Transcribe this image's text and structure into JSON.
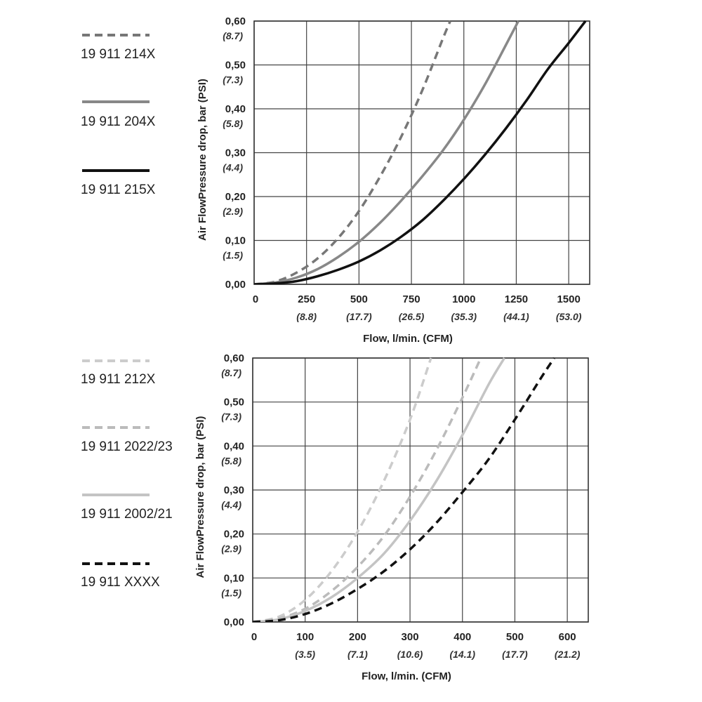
{
  "chart_data": [
    {
      "type": "line",
      "xlabel": "Flow, l/min. (CFM)",
      "ylabel": "Air FlowPressure drop, bar (PSI)",
      "xlim": [
        0,
        1600
      ],
      "ylim": [
        0,
        0.6
      ],
      "x_ticks": [
        0,
        250,
        500,
        750,
        1000,
        1250,
        1500
      ],
      "x_tick_labels": [
        "0",
        "250",
        "500",
        "750",
        "1000",
        "1250",
        "1500"
      ],
      "x_tick_alt_labels": [
        "",
        "(8.8)",
        "(17.7)",
        "(26.5)",
        "(35.3)",
        "(44.1)",
        "(53.0)"
      ],
      "y_ticks": [
        0,
        0.1,
        0.2,
        0.3,
        0.4,
        0.5,
        0.6
      ],
      "y_tick_labels": [
        "0,00",
        "0,10",
        "0,20",
        "0,30",
        "0,40",
        "0,50",
        "0,60"
      ],
      "y_tick_alt_labels": [
        "",
        "(1.5)",
        "(2.9)",
        "(4.4)",
        "(5.8)",
        "(7.3)",
        "(8.7)"
      ],
      "grid": true,
      "legend_position": "left",
      "series": [
        {
          "name": "19 911 214X",
          "color": "#777777",
          "style": "dashed",
          "x": [
            0,
            100,
            200,
            300,
            400,
            500,
            600,
            700,
            800,
            900,
            935
          ],
          "y": [
            0,
            0.006,
            0.026,
            0.058,
            0.105,
            0.167,
            0.245,
            0.335,
            0.44,
            0.56,
            0.6
          ]
        },
        {
          "name": "19 911 204X",
          "color": "#888888",
          "style": "solid",
          "x": [
            0,
            100,
            200,
            300,
            400,
            500,
            600,
            700,
            800,
            900,
            1000,
            1100,
            1200,
            1260
          ],
          "y": [
            0,
            0.004,
            0.015,
            0.034,
            0.062,
            0.097,
            0.14,
            0.19,
            0.245,
            0.305,
            0.375,
            0.455,
            0.545,
            0.6
          ]
        },
        {
          "name": "19 911 215X",
          "color": "#111111",
          "style": "solid",
          "x": [
            0,
            100,
            200,
            300,
            400,
            500,
            600,
            700,
            800,
            900,
            1000,
            1100,
            1200,
            1300,
            1400,
            1500,
            1580
          ],
          "y": [
            0,
            0.002,
            0.007,
            0.018,
            0.033,
            0.052,
            0.077,
            0.108,
            0.145,
            0.19,
            0.24,
            0.295,
            0.355,
            0.42,
            0.49,
            0.55,
            0.6
          ]
        }
      ]
    },
    {
      "type": "line",
      "xlabel": "Flow, l/min. (CFM)",
      "ylabel": "Air FlowPressure drop, bar (PSI)",
      "xlim": [
        0,
        640
      ],
      "ylim": [
        0,
        0.6
      ],
      "x_ticks": [
        0,
        100,
        200,
        300,
        400,
        500,
        600
      ],
      "x_tick_labels": [
        "0",
        "100",
        "200",
        "300",
        "400",
        "500",
        "600"
      ],
      "x_tick_alt_labels": [
        "",
        "(3.5)",
        "(7.1)",
        "(10.6)",
        "(14.1)",
        "(17.7)",
        "(21.2)"
      ],
      "y_ticks": [
        0,
        0.1,
        0.2,
        0.3,
        0.4,
        0.5,
        0.6
      ],
      "y_tick_labels": [
        "0,00",
        "0,10",
        "0,20",
        "0,30",
        "0,40",
        "0,50",
        "0,60"
      ],
      "y_tick_alt_labels": [
        "",
        "(1.5)",
        "(2.9)",
        "(4.4)",
        "(5.8)",
        "(7.3)",
        "(8.7)"
      ],
      "grid": true,
      "legend_position": "left",
      "series": [
        {
          "name": "19 911 212X",
          "color": "#cccccc",
          "style": "dashed",
          "x": [
            0,
            50,
            100,
            150,
            200,
            250,
            300,
            340
          ],
          "y": [
            0,
            0.012,
            0.05,
            0.115,
            0.205,
            0.32,
            0.46,
            0.6
          ]
        },
        {
          "name": "19 911 2022/23",
          "color": "#bbbbbb",
          "style": "dashed",
          "x": [
            0,
            50,
            100,
            150,
            200,
            250,
            300,
            350,
            400,
            435
          ],
          "y": [
            0,
            0.008,
            0.03,
            0.07,
            0.125,
            0.195,
            0.285,
            0.39,
            0.51,
            0.6
          ]
        },
        {
          "name": "19 911 2002/21",
          "color": "#c4c4c4",
          "style": "solid",
          "x": [
            0,
            50,
            100,
            150,
            200,
            250,
            300,
            350,
            400,
            450,
            480
          ],
          "y": [
            0,
            0.006,
            0.025,
            0.056,
            0.1,
            0.155,
            0.23,
            0.32,
            0.425,
            0.54,
            0.6
          ]
        },
        {
          "name": "19 911 XXXX",
          "color": "#111111",
          "style": "dashed",
          "x": [
            0,
            50,
            100,
            150,
            200,
            250,
            300,
            350,
            400,
            450,
            500,
            550,
            575
          ],
          "y": [
            0,
            0.004,
            0.018,
            0.042,
            0.075,
            0.115,
            0.165,
            0.225,
            0.295,
            0.37,
            0.46,
            0.555,
            0.6
          ]
        }
      ]
    }
  ]
}
